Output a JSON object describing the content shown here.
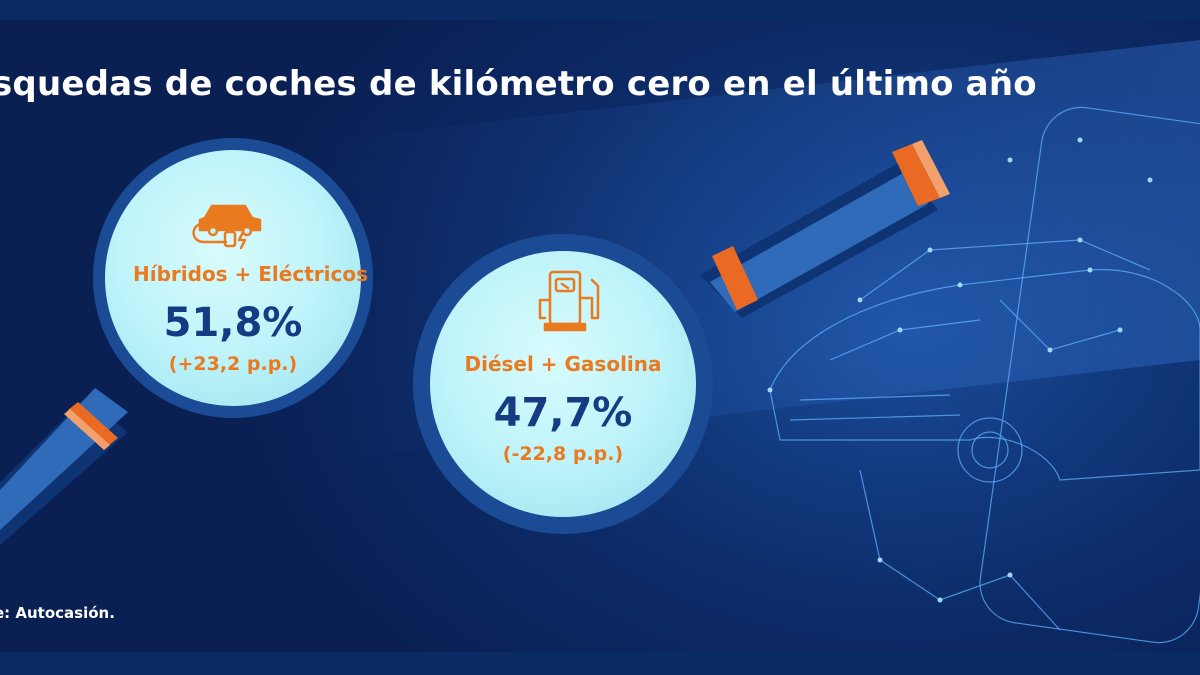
{
  "title": "squedas de coches de kilómetro cero en el último año",
  "source": "e: Autocasión.",
  "stats": [
    {
      "category": "Híbridos + Eléctricos",
      "value": "51,8%",
      "change": "(+23,2 p.p.)",
      "icon": "electric-car-icon"
    },
    {
      "category": "Diésel + Gasolina",
      "value": "47,7%",
      "change": "(-22,8 p.p.)",
      "icon": "fuel-pump-icon"
    }
  ],
  "colors": {
    "background": "#0b1f52",
    "accent": "#ea7a1f",
    "value_text": "#163b82",
    "lens_fill": "#bff6fb",
    "lens_ring": "#1e4f9c"
  }
}
